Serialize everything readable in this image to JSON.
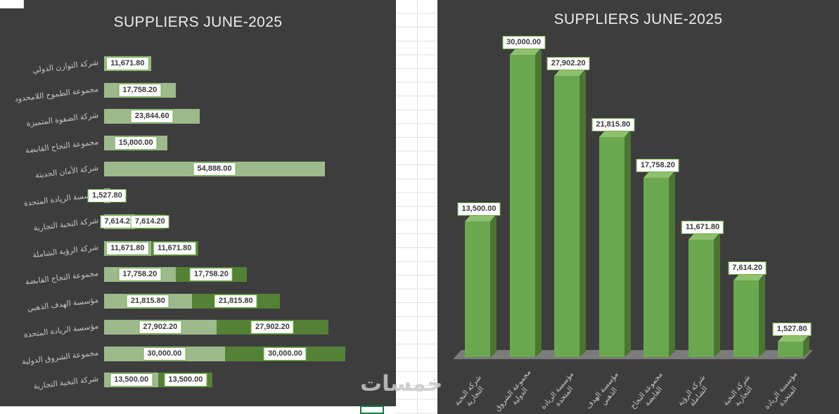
{
  "watermark": "خمسات",
  "chart_data": [
    {
      "type": "bar",
      "orientation": "horizontal",
      "title": "SUPPLIERS JUNE-2025",
      "legend": "none",
      "grid": false,
      "xlim": [
        0,
        60000
      ],
      "categories": [
        "شركة التوازن الدولي",
        "مجموعة الطموح اللامحدود",
        "شركة الصفوة المتميزة",
        "مجموعة النجاح القابضة",
        "شركة الأمان الحديثة",
        "مؤسسة الريادة المتحدة",
        "شركة النخبة التجارية",
        "شركة الرؤية الشاملة",
        "مجموعة النجاح القابضة",
        "مؤسسة الهدف الذهبي",
        "مؤسسة الريادة المتحدة",
        "مجموعة الشروق الدولية",
        "شركة النخبة التجارية"
      ],
      "series": [
        {
          "name": "series-1",
          "values": [
            11671.8,
            17758.2,
            23844.6,
            15800.0,
            54888.0,
            1527.8,
            7614.2,
            11671.8,
            17758.2,
            21815.8,
            27902.2,
            30000.0,
            13500.0
          ],
          "labels": [
            "11,671.80",
            "17,758.20",
            "23,844.60",
            "15,800.00",
            "54,888.00",
            "1,527.80",
            "7,614.20",
            "11,671.80",
            "17,758.20",
            "21,815.80",
            "27,902.20",
            "30,000.00",
            "13,500.00"
          ]
        },
        {
          "name": "series-2",
          "values": [
            null,
            null,
            null,
            null,
            null,
            null,
            7614.2,
            11671.8,
            17758.2,
            21815.8,
            27902.2,
            30000.0,
            13500.0
          ],
          "labels": [
            null,
            null,
            null,
            null,
            null,
            null,
            "7,614.20",
            "11,671.80",
            "17,758.20",
            "21,815.80",
            "27,902.20",
            "30,000.00",
            "13,500.00"
          ]
        }
      ],
      "colors": {
        "background": "#3d3d3d",
        "series_light": "#9cba8c",
        "series_dark": "#538135",
        "label_box_border": "#70ad47",
        "label_box_bg": "#ffffff",
        "label_text": "#3a3a3a",
        "category_text": "#c6c6c6",
        "title_text": "#ececec"
      }
    },
    {
      "type": "bar",
      "orientation": "vertical-3d",
      "title": "SUPPLIERS JUNE-2025",
      "legend": "none",
      "grid": false,
      "ylim": [
        0,
        30000
      ],
      "categories": [
        "شركة النخبة التجارية",
        "مجموعة الشروق الدولية",
        "مؤسسة الريادة المتحدة",
        "مؤسسة الهدف الذهبي",
        "مجموعة النجاح القابضة",
        "شركة الرؤية الشاملة",
        "شركة النخبة التجارية",
        "مؤسسة الريادة المتحدة"
      ],
      "values": [
        13500.0,
        30000.0,
        27902.2,
        21815.8,
        17758.2,
        11671.8,
        7614.2,
        1527.8
      ],
      "labels": [
        "13,500.00",
        "30,000.00",
        "27,902.20",
        "21,815.80",
        "17,758.20",
        "11,671.80",
        "7,614.20",
        "1,527.80"
      ],
      "colors": {
        "background": "#3d3d3d",
        "column_front": "#69a84e",
        "column_side": "#4a7631",
        "column_top": "#8fc06f",
        "floor": "#7b7b7b",
        "label_box_border": "#70ad47",
        "label_box_bg": "#ffffff",
        "label_text": "#3a3a3a",
        "category_text": "#c6c6c6",
        "title_text": "#ececec"
      }
    }
  ]
}
